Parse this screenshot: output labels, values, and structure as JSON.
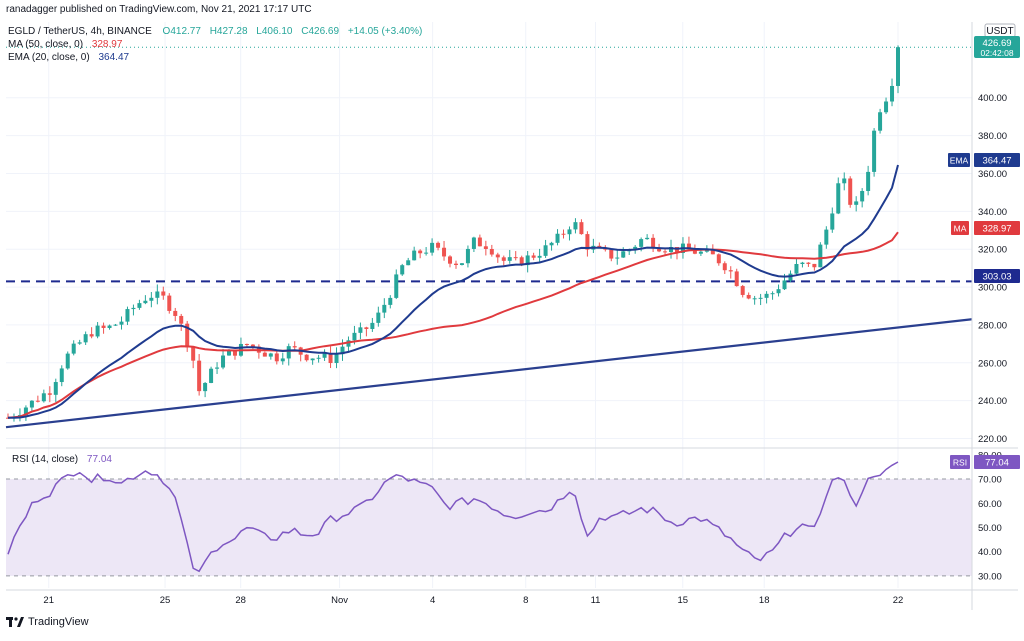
{
  "publish_line": "ranadagger published on TradingView.com, Nov 21, 2021 17:17 UTC",
  "legend": {
    "symbol_line": "EGLD / TetherUS, 4h, BINANCE",
    "o": "O412.77",
    "h": "H427.28",
    "l": "L406.10",
    "c": "C426.69",
    "change": "+14.05 (+3.40%)",
    "ma_label": "MA (50, close, 0)",
    "ma_value": "328.97",
    "ema_label": "EMA (20, close, 0)",
    "ema_value": "364.47",
    "rsi_label": "RSI (14, close)",
    "rsi_value": "77.04"
  },
  "currency": "USDT",
  "price_badge": {
    "price": "426.69",
    "timer": "02:42:08"
  },
  "axis_badges": {
    "ema": {
      "tag": "EMA",
      "value": "364.47"
    },
    "ma": {
      "tag": "MA",
      "value": "328.97"
    },
    "level": {
      "value": "303.03"
    },
    "rsi": {
      "tag": "RSI",
      "value": "77.04"
    }
  },
  "footer_brand": "TradingView",
  "colors": {
    "up": "#26a69a",
    "down": "#ef5350",
    "ema": "#1f3b8f",
    "ma": "#e03a3e",
    "rsi": "#7e57c2",
    "rsi_band": "#ede7f6",
    "trendline": "#2a3f8f",
    "price_badge": "#26a69a"
  },
  "chart_data": {
    "type": "candlestick",
    "price_axis": {
      "min": 215,
      "max": 440,
      "ticks": [
        "220.00",
        "240.00",
        "260.00",
        "280.00",
        "300.00",
        "320.00",
        "340.00",
        "360.00",
        "380.00",
        "400.00"
      ]
    },
    "time_axis": {
      "labels": [
        "21",
        "25",
        "28",
        "Nov",
        "4",
        "8",
        "11",
        "15",
        "18",
        "22"
      ]
    },
    "horizontal_level": 303.03,
    "trendline": {
      "from": [
        0,
        226
      ],
      "to": [
        1,
        283
      ]
    },
    "ema20_last": 364.47,
    "ma50_last": 328.97,
    "rsi": {
      "ticks": [
        "30.00",
        "40.00",
        "50.00",
        "60.00",
        "70.00",
        "80.00"
      ],
      "bands": [
        30,
        70
      ],
      "min": 25,
      "max": 82,
      "last": 77.04
    },
    "price_path": [
      [
        0,
        231
      ],
      [
        3,
        238
      ],
      [
        6,
        246
      ],
      [
        8,
        262
      ],
      [
        10,
        270
      ],
      [
        12,
        277
      ],
      [
        14,
        278
      ],
      [
        16,
        282
      ],
      [
        18,
        290
      ],
      [
        20,
        296
      ],
      [
        22,
        294
      ],
      [
        24,
        285
      ],
      [
        25,
        274
      ],
      [
        26,
        266
      ],
      [
        27,
        245
      ],
      [
        28,
        250
      ],
      [
        30,
        262
      ],
      [
        32,
        266
      ],
      [
        34,
        270
      ],
      [
        36,
        266
      ],
      [
        38,
        263
      ],
      [
        40,
        268
      ],
      [
        42,
        264
      ],
      [
        44,
        263
      ],
      [
        46,
        262
      ],
      [
        48,
        272
      ],
      [
        50,
        276
      ],
      [
        52,
        282
      ],
      [
        54,
        296
      ],
      [
        56,
        312
      ],
      [
        58,
        318
      ],
      [
        60,
        321
      ],
      [
        62,
        316
      ],
      [
        64,
        312
      ],
      [
        66,
        324
      ],
      [
        68,
        322
      ],
      [
        70,
        314
      ],
      [
        72,
        313
      ],
      [
        74,
        316
      ],
      [
        76,
        320
      ],
      [
        78,
        326
      ],
      [
        80,
        335
      ],
      [
        82,
        322
      ],
      [
        84,
        318
      ],
      [
        86,
        316
      ],
      [
        88,
        320
      ],
      [
        90,
        326
      ],
      [
        92,
        322
      ],
      [
        94,
        320
      ],
      [
        96,
        320
      ],
      [
        98,
        318
      ],
      [
        100,
        316
      ],
      [
        102,
        310
      ],
      [
        104,
        298
      ],
      [
        106,
        294
      ],
      [
        108,
        296
      ],
      [
        110,
        304
      ],
      [
        112,
        312
      ],
      [
        114,
        310
      ],
      [
        116,
        332
      ],
      [
        118,
        360
      ],
      [
        119,
        346
      ],
      [
        120,
        342
      ],
      [
        121,
        352
      ],
      [
        122,
        366
      ],
      [
        123,
        392
      ],
      [
        124,
        398
      ],
      [
        125,
        406
      ],
      [
        126,
        426.69
      ]
    ],
    "rsi_path": [
      [
        0,
        40
      ],
      [
        2,
        52
      ],
      [
        4,
        62
      ],
      [
        6,
        65
      ],
      [
        8,
        70
      ],
      [
        10,
        75
      ],
      [
        12,
        69
      ],
      [
        14,
        72
      ],
      [
        16,
        68
      ],
      [
        18,
        72
      ],
      [
        20,
        74
      ],
      [
        22,
        70
      ],
      [
        24,
        60
      ],
      [
        25,
        46
      ],
      [
        26,
        35
      ],
      [
        27,
        30
      ],
      [
        28,
        36
      ],
      [
        30,
        44
      ],
      [
        32,
        45
      ],
      [
        34,
        50
      ],
      [
        36,
        46
      ],
      [
        38,
        46
      ],
      [
        40,
        49
      ],
      [
        42,
        47
      ],
      [
        44,
        48
      ],
      [
        46,
        54
      ],
      [
        48,
        56
      ],
      [
        50,
        58
      ],
      [
        52,
        64
      ],
      [
        54,
        70
      ],
      [
        56,
        71
      ],
      [
        58,
        68
      ],
      [
        60,
        66
      ],
      [
        62,
        59
      ],
      [
        64,
        60
      ],
      [
        66,
        62
      ],
      [
        68,
        60
      ],
      [
        70,
        56
      ],
      [
        72,
        55
      ],
      [
        74,
        57
      ],
      [
        76,
        57
      ],
      [
        78,
        61
      ],
      [
        80,
        68
      ],
      [
        82,
        46
      ],
      [
        84,
        55
      ],
      [
        86,
        54
      ],
      [
        88,
        56
      ],
      [
        90,
        58
      ],
      [
        92,
        56
      ],
      [
        94,
        52
      ],
      [
        96,
        53
      ],
      [
        98,
        54
      ],
      [
        100,
        50
      ],
      [
        102,
        46
      ],
      [
        104,
        40
      ],
      [
        106,
        36
      ],
      [
        108,
        39
      ],
      [
        110,
        46
      ],
      [
        112,
        52
      ],
      [
        114,
        47
      ],
      [
        116,
        66
      ],
      [
        118,
        73
      ],
      [
        119,
        62
      ],
      [
        120,
        60
      ],
      [
        121,
        66
      ],
      [
        122,
        70
      ],
      [
        123,
        74
      ],
      [
        124,
        72
      ],
      [
        125,
        74
      ],
      [
        126,
        77
      ]
    ]
  }
}
